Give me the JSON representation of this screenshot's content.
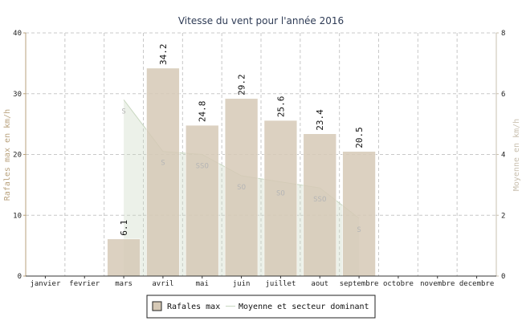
{
  "chart_data": {
    "type": "bar",
    "title": "Vitesse du vent pour l'année 2016",
    "categories": [
      "janvier",
      "fevrier",
      "mars",
      "avril",
      "mai",
      "juin",
      "juillet",
      "aout",
      "septembre",
      "octobre",
      "novembre",
      "decembre"
    ],
    "ylabel": "Rafales max en km/h",
    "ylabel_right": "Moyenne en km/h",
    "ylim": [
      0,
      40
    ],
    "y_ticks": [
      0,
      10,
      20,
      30,
      40
    ],
    "ylim_right": [
      0,
      8
    ],
    "y_ticks_right": [
      0,
      2,
      4,
      6,
      8
    ],
    "grid": true,
    "legend_position": "bottom",
    "series": [
      {
        "name": "Rafales max",
        "type": "bar",
        "values": [
          null,
          null,
          6.1,
          34.2,
          24.8,
          29.2,
          25.6,
          23.4,
          20.5,
          null,
          null,
          null
        ],
        "labels": [
          "",
          "",
          "6.1",
          "34.2",
          "24.8",
          "29.2",
          "25.6",
          "23.4",
          "20.5",
          "",
          "",
          ""
        ],
        "color": "#d6c9b6"
      },
      {
        "name": "Moyenne et secteur dominant",
        "type": "area",
        "axis": "right",
        "values": [
          null,
          null,
          5.8,
          4.1,
          4.0,
          3.3,
          3.1,
          2.9,
          1.9,
          null,
          null,
          null
        ],
        "sectors": [
          "",
          "",
          "S",
          "S",
          "SSO",
          "SO",
          "SO",
          "SSO",
          "S",
          "",
          "",
          ""
        ],
        "color": "#c8d7c0"
      }
    ]
  }
}
